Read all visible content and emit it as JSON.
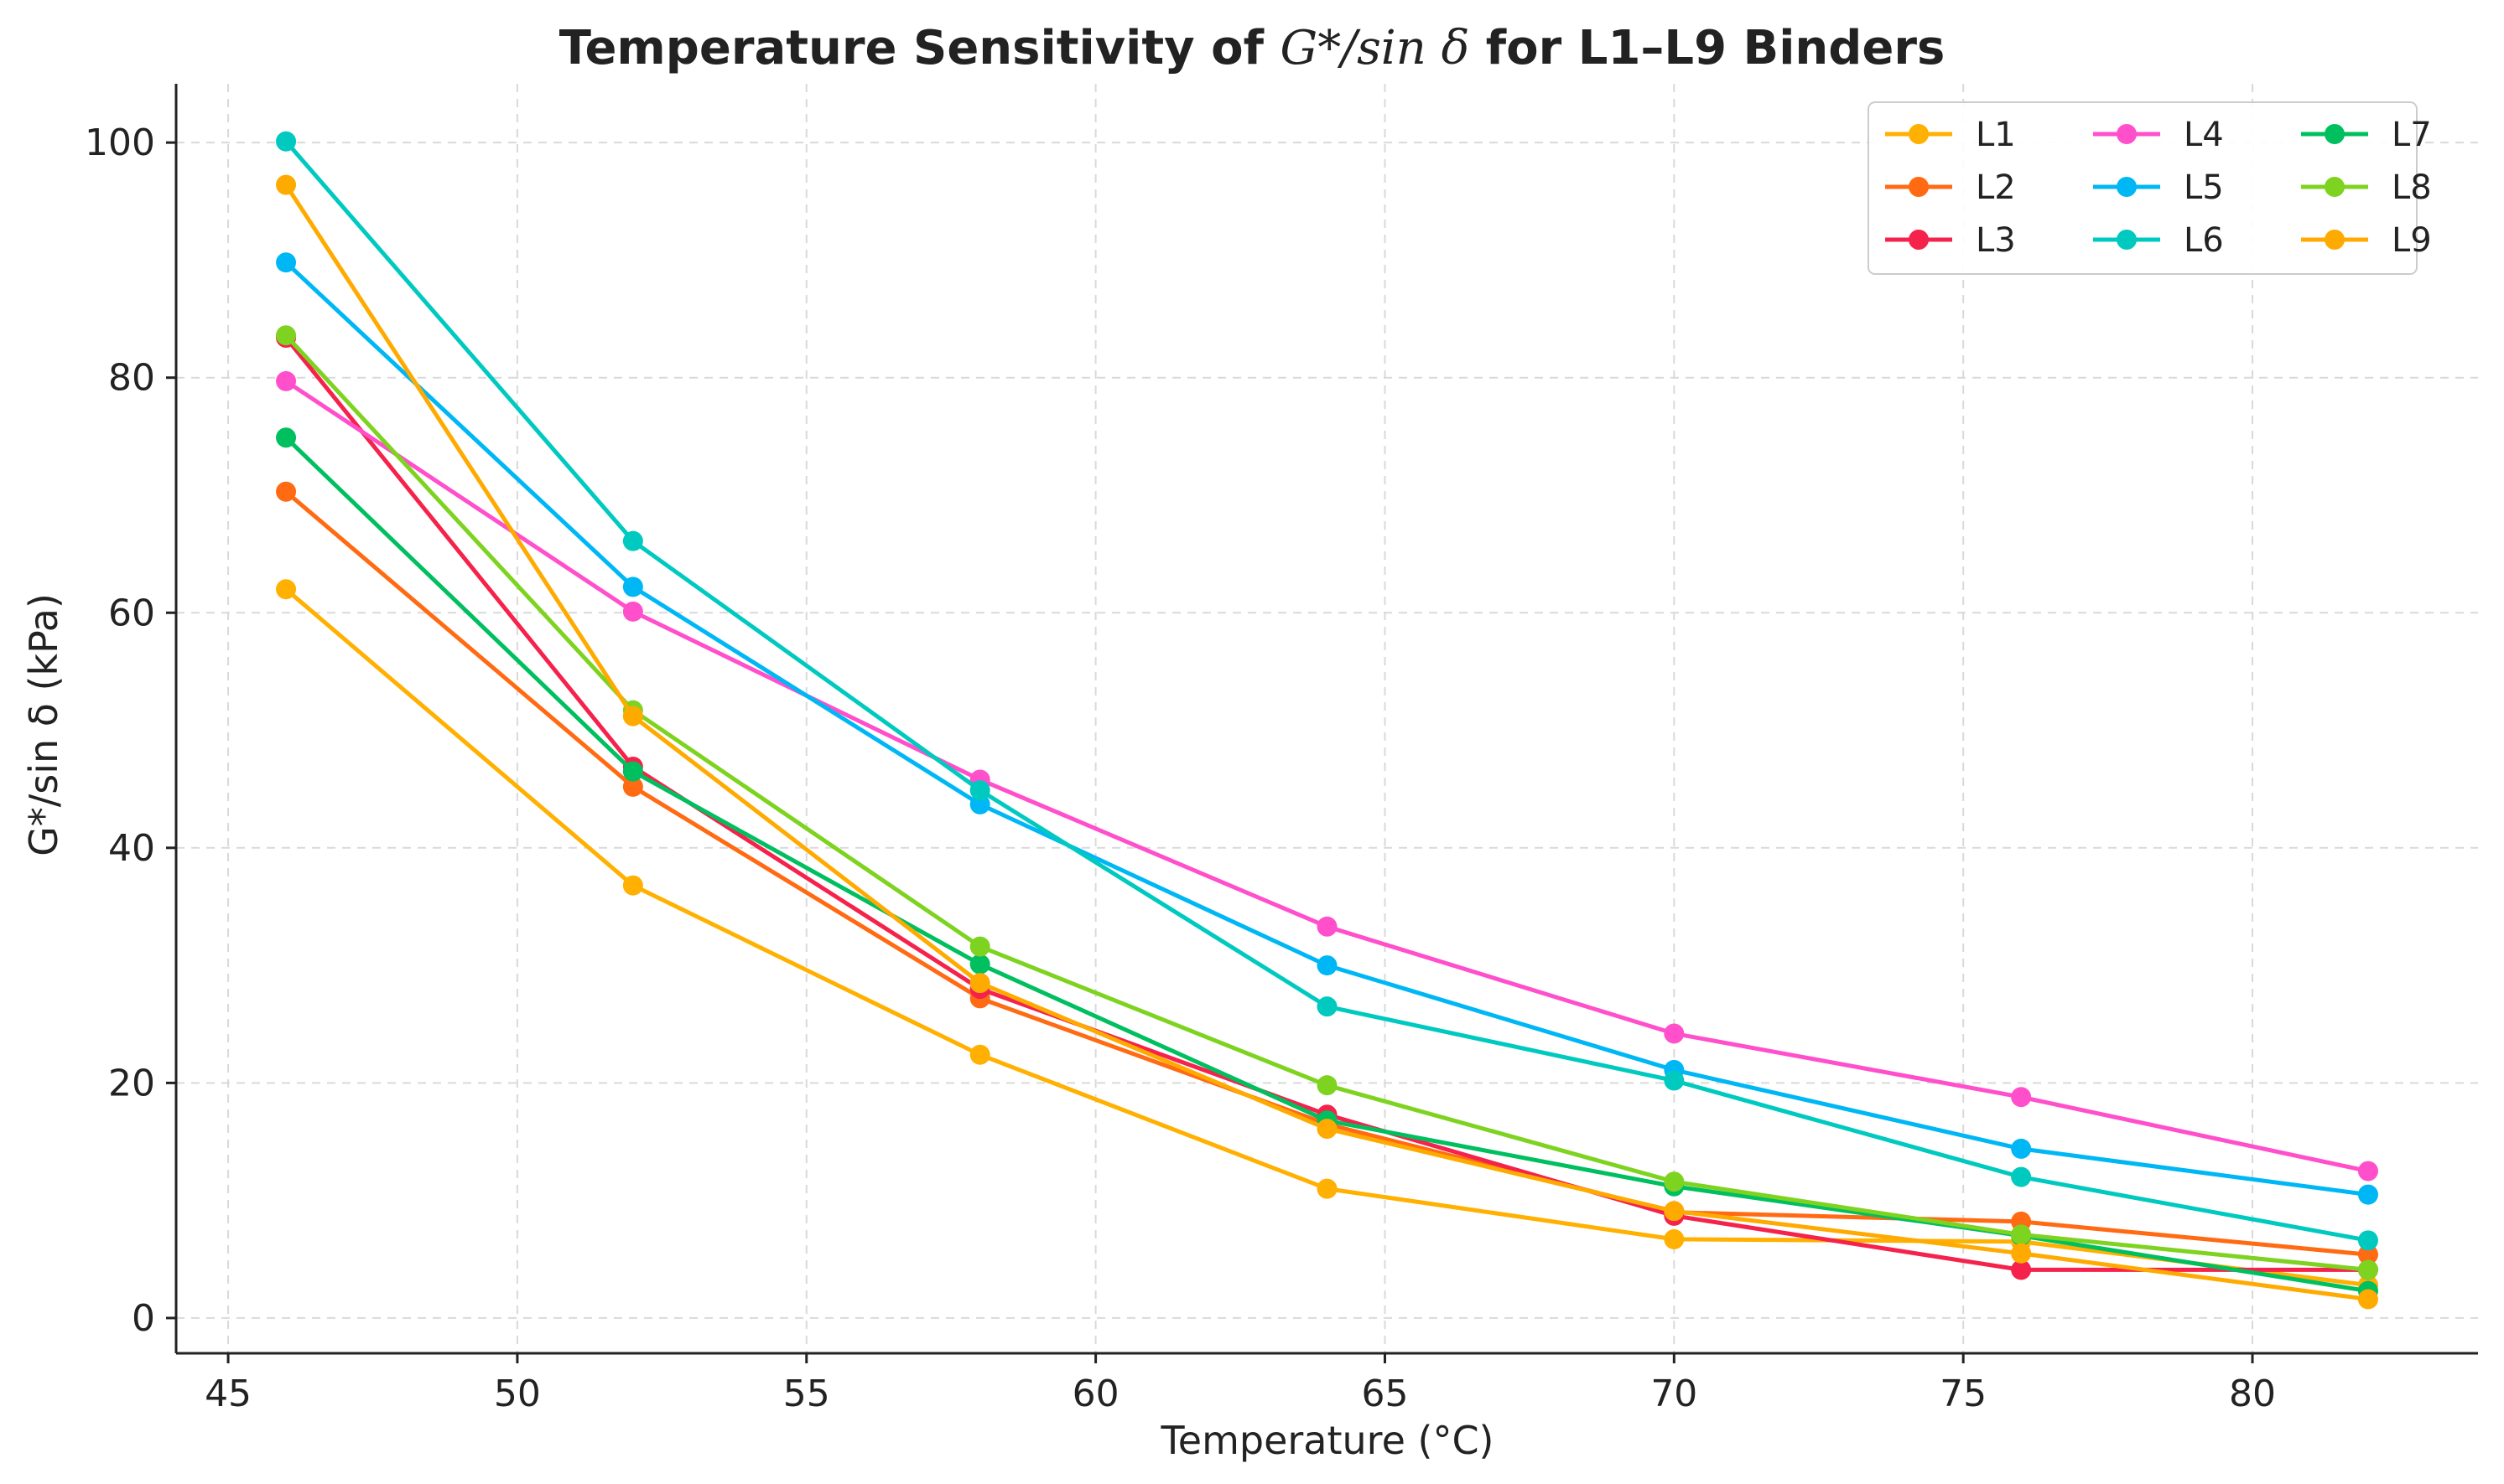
{
  "chart_data": {
    "type": "line",
    "title_prefix": "Temperature Sensitivity of ",
    "title_math": "G*/sin δ",
    "title_suffix": " for L1–L9 Binders",
    "xlabel": "Temperature (°C)",
    "ylabel": "G*/sin δ (kPa)",
    "xlim": [
      44.1,
      83.9
    ],
    "ylim": [
      -3,
      105
    ],
    "xticks": [
      45,
      50,
      55,
      60,
      65,
      70,
      75,
      80
    ],
    "yticks": [
      0,
      20,
      40,
      60,
      80,
      100
    ],
    "grid": true,
    "legend_position": "top-right",
    "x": [
      46,
      52,
      58,
      64,
      70,
      76,
      82
    ],
    "series": [
      {
        "name": "L1",
        "color": "#FFB000",
        "values": [
          62.0,
          36.8,
          22.4,
          11.0,
          6.7,
          6.5,
          2.8
        ]
      },
      {
        "name": "L2",
        "color": "#FF6A13",
        "values": [
          70.3,
          45.2,
          27.2,
          16.5,
          9.0,
          8.2,
          5.4
        ]
      },
      {
        "name": "L3",
        "color": "#F5224B",
        "values": [
          83.4,
          46.9,
          28.0,
          17.3,
          8.7,
          4.1,
          4.1
        ]
      },
      {
        "name": "L4",
        "color": "#FF4FCB",
        "values": [
          79.7,
          60.1,
          45.8,
          33.3,
          24.2,
          18.8,
          12.5
        ]
      },
      {
        "name": "L5",
        "color": "#00B7F5",
        "values": [
          89.8,
          62.2,
          43.7,
          30.0,
          21.1,
          14.4,
          10.5
        ]
      },
      {
        "name": "L6",
        "color": "#00C9C0",
        "values": [
          100.1,
          66.1,
          44.9,
          26.5,
          20.2,
          12.0,
          6.6
        ]
      },
      {
        "name": "L7",
        "color": "#00BF5F",
        "values": [
          74.9,
          46.5,
          30.1,
          16.8,
          11.2,
          7.0,
          2.3
        ]
      },
      {
        "name": "L8",
        "color": "#7ED321",
        "values": [
          83.6,
          51.7,
          31.6,
          19.8,
          11.6,
          7.1,
          4.1
        ]
      },
      {
        "name": "L9",
        "color": "#FFAA00",
        "values": [
          96.4,
          51.2,
          28.5,
          16.1,
          9.1,
          5.5,
          1.6
        ]
      }
    ]
  }
}
